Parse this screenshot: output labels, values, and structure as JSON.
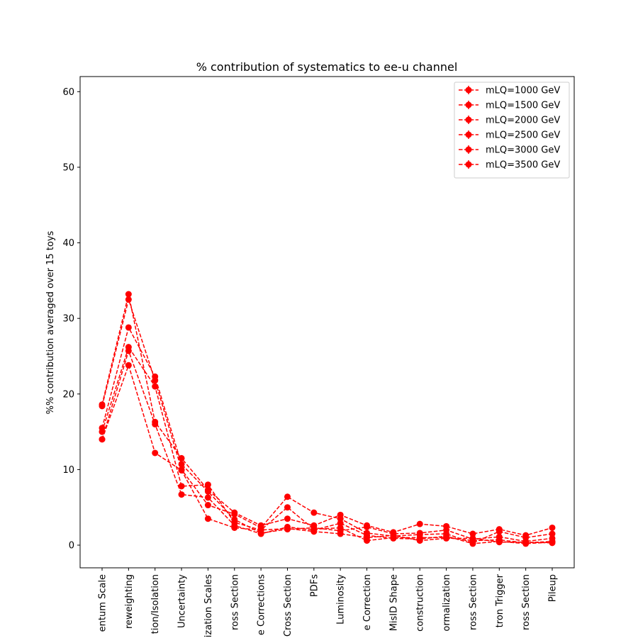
{
  "chart_data": {
    "type": "line",
    "title": "% contribution of systematics to ee-u channel",
    "xlabel": "",
    "ylabel": "%% contribution averaged over 15 toys",
    "ylim": [
      -3,
      62
    ],
    "yticks": [
      0,
      10,
      20,
      30,
      40,
      50,
      60
    ],
    "grid": false,
    "legend_position": "top-right",
    "line_color": "#ff0000",
    "line_style": "dashed",
    "marker": "circle",
    "categories": [
      "Electron Momentum Scale",
      "Top pT Reweighting",
      "Electron Identification/Isolation",
      "Jet Energy Uncertainty",
      "Renormalization/Factorization Scales",
      "Diboson Cross Section",
      "Z pT Shape Corrections",
      "Single Top Cross Section",
      "PDFs",
      "Luminosity",
      "Electron Energy Scale Correction",
      "MisID Shape",
      "Jet Reconstruction",
      "Normalization",
      "W Cross Section",
      "Electron Trigger",
      "ttbar Cross Section",
      "Pileup"
    ],
    "tick_labels": [
      "entum Scale",
      "reweighting",
      "tion/Isolation",
      "Uncertainty",
      "ization Scales",
      "ross Section",
      "e Corrections",
      "Cross Section",
      "PDFs",
      "Luminosity",
      "e Correction",
      "MisID Shape",
      "construction",
      "ormalization",
      "ross Section",
      "tron Trigger",
      "ross Section",
      "Pileup"
    ],
    "series": [
      {
        "name": "mLQ=1000 GeV",
        "values": [
          18.6,
          33.2,
          16.3,
          11.5,
          7.3,
          4.3,
          2.6,
          3.5,
          2.6,
          4.0,
          2.6,
          1.7,
          2.8,
          2.5,
          1.5,
          2.1,
          1.3,
          2.3
        ]
      },
      {
        "name": "mLQ=1500 GeV",
        "values": [
          18.4,
          32.5,
          21.8,
          10.0,
          5.3,
          4.1,
          2.3,
          6.4,
          4.3,
          3.5,
          1.6,
          1.2,
          1.4,
          1.5,
          0.3,
          1.8,
          1.0,
          1.5
        ]
      },
      {
        "name": "mLQ=2000 GeV",
        "values": [
          15.5,
          28.8,
          22.3,
          10.7,
          7.1,
          3.4,
          1.6,
          2.1,
          2.3,
          1.9,
          2.4,
          1.5,
          1.6,
          2.0,
          0.8,
          1.1,
          0.5,
          0.9
        ]
      },
      {
        "name": "mLQ=2500 GeV",
        "values": [
          15.0,
          26.2,
          21.0,
          7.8,
          8.0,
          3.0,
          2.0,
          5.0,
          2.1,
          2.3,
          0.6,
          1.0,
          1.0,
          1.0,
          0.6,
          0.7,
          0.3,
          0.5
        ]
      },
      {
        "name": "mLQ=3000 GeV",
        "values": [
          14.0,
          25.7,
          16.0,
          6.7,
          6.3,
          2.6,
          1.5,
          2.4,
          2.0,
          2.9,
          1.3,
          0.9,
          0.8,
          1.2,
          0.2,
          0.5,
          0.2,
          0.4
        ]
      },
      {
        "name": "mLQ=3500 GeV",
        "values": [
          14.0,
          23.8,
          12.2,
          9.9,
          3.5,
          2.3,
          2.0,
          2.2,
          1.8,
          1.5,
          1.0,
          1.3,
          0.6,
          0.9,
          0.9,
          0.4,
          0.4,
          0.3
        ]
      }
    ]
  }
}
